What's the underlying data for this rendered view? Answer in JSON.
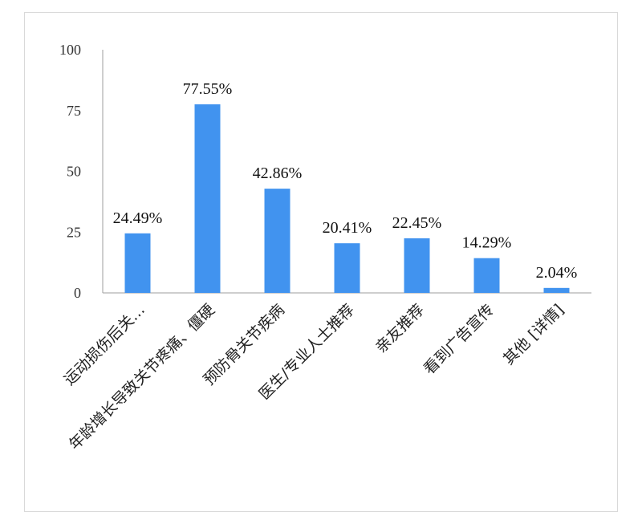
{
  "chart_data": {
    "type": "bar",
    "categories": [
      "运动损伤后关…",
      "年龄增长导致关节疼痛、僵硬",
      "预防骨关节疾病",
      "医生/专业人士推荐",
      "亲友推荐",
      "看到广告宣传",
      "其他 [详情]"
    ],
    "values": [
      24.49,
      77.55,
      42.86,
      20.41,
      22.45,
      14.29,
      2.04
    ],
    "data_labels": [
      "24.49%",
      "77.55%",
      "42.86%",
      "20.41%",
      "22.45%",
      "14.29%",
      "2.04%"
    ],
    "yticks": [
      "0",
      "25",
      "50",
      "75",
      "100"
    ],
    "ylim": [
      0,
      100
    ],
    "grid": false,
    "legend": "none",
    "bar_color": "#4193ef"
  }
}
